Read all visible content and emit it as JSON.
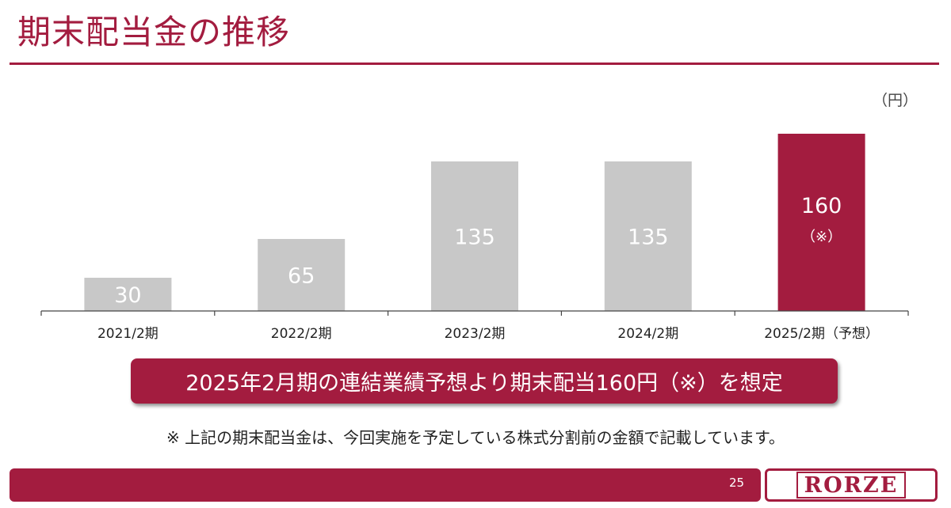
{
  "page": {
    "title": "期末配当金の推移",
    "unit_label": "（円）",
    "banner_text": "2025年2月期の連結業績予想より期末配当160円（※）を想定",
    "footnote": "※ 上記の期末配当金は、今回実施を予定している株式分割前の金額で記載しています。",
    "page_number": "25",
    "logo_text": "RORZE"
  },
  "colors": {
    "accent": "#a31c3f",
    "bar_gray": "#c8c8c8",
    "bar_highlight": "#a31c3f"
  },
  "chart_data": {
    "type": "bar",
    "categories": [
      "2021/2期",
      "2022/2期",
      "2023/2期",
      "2024/2期",
      "2025/2期（予想）"
    ],
    "values": [
      30,
      65,
      135,
      135,
      160
    ],
    "data_labels": [
      "30",
      "65",
      "135",
      "135",
      "160"
    ],
    "highlight_index": 4,
    "highlight_note": "（※）",
    "ylim": [
      0,
      175
    ],
    "grid": false,
    "title": "",
    "xlabel": "",
    "ylabel": ""
  }
}
